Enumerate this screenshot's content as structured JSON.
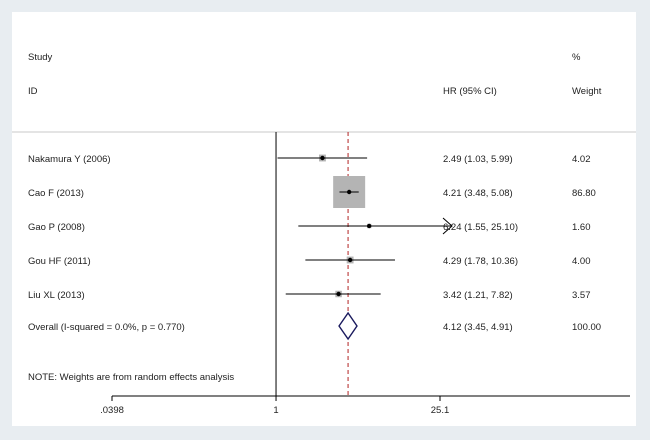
{
  "chart_data": {
    "type": "forest",
    "headers": {
      "study_line1": "Study",
      "study_line2": "ID",
      "hr": "HR (95% CI)",
      "weight_line1": "%",
      "weight_line2": "Weight"
    },
    "x_scale": "log",
    "xlim": [
      0.0398,
      25.1
    ],
    "x_ticks": [
      {
        "value": 0.0398,
        "label": ".0398"
      },
      {
        "value": 1,
        "label": "1"
      },
      {
        "value": 25.1,
        "label": "25.1"
      }
    ],
    "null_line": 1,
    "overall_line": 4.12,
    "studies": [
      {
        "label": "Nakamura Y (2006)",
        "hr": 2.49,
        "lo": 1.03,
        "hi": 5.99,
        "hr_text": "2.49 (1.03, 5.99)",
        "weight": 4.02,
        "weight_text": "4.02",
        "arrow_right": false
      },
      {
        "label": "Cao F (2013)",
        "hr": 4.21,
        "lo": 3.48,
        "hi": 5.08,
        "hr_text": "4.21 (3.48, 5.08)",
        "weight": 86.8,
        "weight_text": "86.80",
        "arrow_right": false
      },
      {
        "label": "Gao P (2008)",
        "hr": 6.24,
        "lo": 1.55,
        "hi": 25.1,
        "hr_text": "6.24 (1.55, 25.10)",
        "weight": 1.6,
        "weight_text": "1.60",
        "arrow_right": true
      },
      {
        "label": "Gou HF (2011)",
        "hr": 4.29,
        "lo": 1.78,
        "hi": 10.36,
        "hr_text": "4.29 (1.78, 10.36)",
        "weight": 4.0,
        "weight_text": "4.00",
        "arrow_right": false
      },
      {
        "label": "Liu XL (2013)",
        "hr": 3.42,
        "lo": 1.21,
        "hi": 7.82,
        "hr_text": "3.42 (1.21, 7.82)",
        "weight": 3.57,
        "weight_text": "3.57",
        "arrow_right": false
      }
    ],
    "overall": {
      "label": "Overall  (I-squared = 0.0%, p = 0.770)",
      "hr": 4.12,
      "lo": 3.45,
      "hi": 4.91,
      "hr_text": "4.12 (3.45, 4.91)",
      "weight_text": "100.00"
    },
    "note": "NOTE: Weights are from random effects analysis",
    "colors": {
      "box": "#b4b4b4",
      "diamond": "#1a1a5e",
      "overall_line": "#b22222",
      "line": "#000000"
    }
  }
}
